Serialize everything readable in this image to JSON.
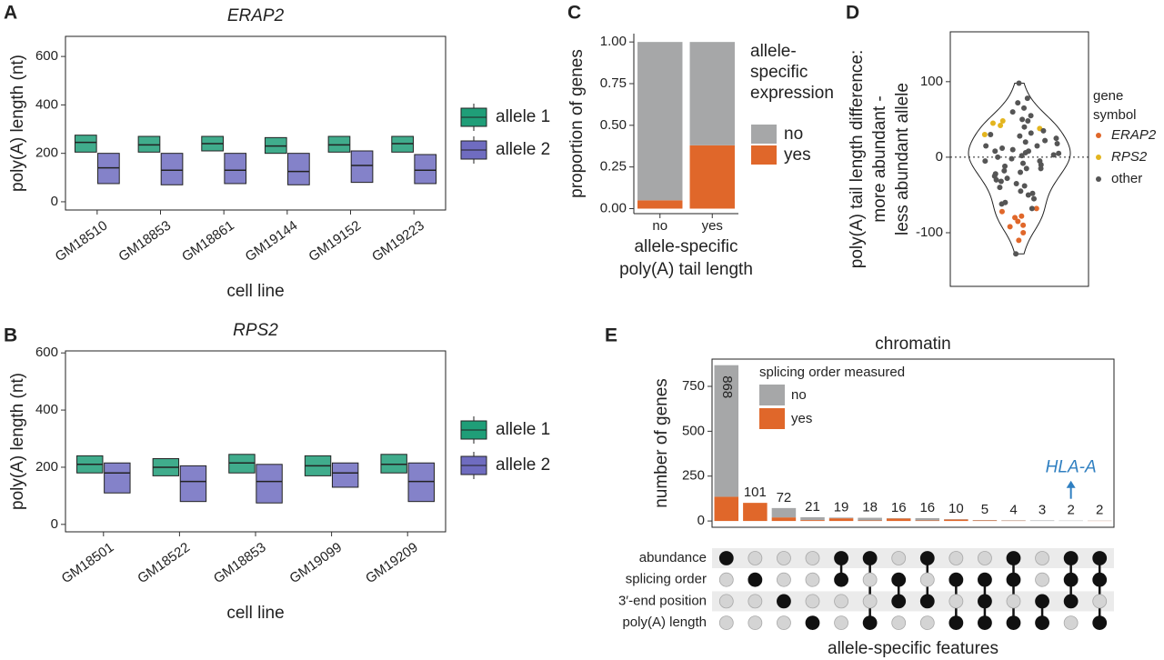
{
  "chart_data": [
    {
      "panel": "A",
      "type": "box",
      "title": "ERAP2",
      "x_label": "cell line",
      "y_label": "poly(A) length (nt)",
      "categories": [
        "GM18510",
        "GM18853",
        "GM18861",
        "GM19144",
        "GM19152",
        "GM19223"
      ],
      "series": [
        {
          "name": "allele 1",
          "color": "#1f9e78",
          "q1": [
            205,
            205,
            210,
            200,
            205,
            205
          ],
          "median": [
            245,
            235,
            240,
            230,
            235,
            240
          ],
          "q3": [
            275,
            270,
            270,
            265,
            270,
            270
          ]
        },
        {
          "name": "allele 2",
          "color": "#6f6cc0",
          "q1": [
            75,
            70,
            75,
            70,
            80,
            75
          ],
          "median": [
            140,
            130,
            130,
            125,
            150,
            130
          ],
          "q3": [
            200,
            200,
            200,
            200,
            210,
            195
          ]
        }
      ],
      "ylim": [
        -34,
        683
      ],
      "yticks": [
        0,
        200,
        400,
        600
      ]
    },
    {
      "panel": "B",
      "type": "box",
      "title": "RPS2",
      "x_label": "cell line",
      "y_label": "poly(A) length (nt)",
      "categories": [
        "GM18501",
        "GM18522",
        "GM18853",
        "GM19099",
        "GM19209"
      ],
      "series": [
        {
          "name": "allele 1",
          "color": "#1f9e78",
          "q1": [
            180,
            170,
            180,
            170,
            180
          ],
          "median": [
            210,
            200,
            215,
            205,
            210
          ],
          "q3": [
            240,
            230,
            245,
            240,
            245
          ]
        },
        {
          "name": "allele 2",
          "color": "#6f6cc0",
          "q1": [
            110,
            80,
            75,
            130,
            80
          ],
          "median": [
            180,
            150,
            150,
            180,
            150
          ],
          "q3": [
            215,
            205,
            210,
            215,
            215
          ]
        }
      ],
      "ylim": [
        -26,
        607
      ],
      "yticks": [
        0,
        200,
        400,
        600
      ]
    },
    {
      "panel": "C",
      "type": "stacked_bar",
      "y_label": "proportion of genes",
      "x_label": [
        "allele-specific",
        "poly(A) tail length"
      ],
      "legend_title": [
        "allele-",
        "specific",
        "expression"
      ],
      "categories": [
        "no",
        "yes"
      ],
      "series": [
        {
          "name": "no",
          "color": "#a6a7a8",
          "values": [
            0.95,
            0.62
          ]
        },
        {
          "name": "yes",
          "color": "#e0672a",
          "values": [
            0.05,
            0.38
          ]
        }
      ],
      "ylim": [
        -0.03,
        1.05
      ],
      "yticks": [
        {
          "value": 0,
          "label": "0.00"
        },
        {
          "value": 0.25,
          "label": "0.25"
        },
        {
          "value": 0.5,
          "label": "0.50"
        },
        {
          "value": 0.75,
          "label": "0.75"
        },
        {
          "value": 1,
          "label": "1.00"
        }
      ]
    },
    {
      "panel": "D",
      "type": "violin",
      "y_label": [
        "poly(A) tail length difference:",
        "more abundant -",
        "less abundant allele"
      ],
      "legend_title": [
        "gene",
        "symbol"
      ],
      "series": [
        {
          "name": "ERAP2",
          "italic": true,
          "color": "#e0672a",
          "values": [
            -68,
            -72,
            -78,
            -80,
            -85,
            -90,
            -92,
            -100,
            -110
          ]
        },
        {
          "name": "RPS2",
          "italic": true,
          "color": "#e3b51f",
          "values": [
            45,
            42,
            38,
            30,
            48
          ]
        },
        {
          "name": "other",
          "italic": false,
          "color": "#555555",
          "values": [
            98,
            78,
            72,
            65,
            60,
            55,
            50,
            48,
            40,
            35,
            32,
            28,
            25,
            22,
            20,
            18,
            15,
            12,
            10,
            8,
            6,
            5,
            3,
            2,
            0,
            -2,
            -5,
            -8,
            -10,
            -12,
            -15,
            -18,
            -20,
            -22,
            -25,
            -28,
            -30,
            -32,
            -35,
            -38,
            -40,
            -45,
            -48,
            -50,
            -55,
            -60,
            -62,
            -68,
            -128,
            30,
            15,
            -15,
            -5,
            8
          ]
        }
      ],
      "ylim": [
        -171,
        166
      ],
      "yticks": [
        -100,
        0,
        100
      ]
    },
    {
      "panel": "E",
      "type": "upset",
      "title": "chromatin",
      "y_label": "number of genes",
      "x_label": "allele-specific features",
      "legend_title": "splicing order measured",
      "totals": [
        868,
        101,
        72,
        21,
        19,
        18,
        16,
        16,
        10,
        5,
        4,
        3,
        2,
        2
      ],
      "series": [
        {
          "name": "no",
          "color": "#a6a7a8",
          "values": [
            733,
            0,
            52,
            16,
            4,
            15,
            2,
            13,
            2,
            2,
            2,
            3,
            2,
            1
          ]
        },
        {
          "name": "yes",
          "color": "#e0672a",
          "values": [
            135,
            101,
            20,
            5,
            15,
            3,
            14,
            3,
            8,
            3,
            2,
            0,
            0,
            1
          ]
        }
      ],
      "sets": [
        "abundance",
        "splicing order",
        "3′-end position",
        "poly(A) length"
      ],
      "membership": [
        [
          1,
          0,
          0,
          0,
          1,
          1,
          0,
          1,
          0,
          0,
          1,
          0,
          1,
          1
        ],
        [
          0,
          1,
          0,
          0,
          1,
          0,
          1,
          0,
          1,
          1,
          1,
          0,
          1,
          1
        ],
        [
          0,
          0,
          1,
          0,
          0,
          0,
          1,
          1,
          0,
          1,
          0,
          1,
          1,
          0
        ],
        [
          0,
          0,
          0,
          1,
          0,
          1,
          0,
          0,
          1,
          1,
          1,
          1,
          0,
          1
        ]
      ],
      "annotation": {
        "text": "HLA-A",
        "target": 12,
        "color": "#2f7fc1"
      },
      "ylim": [
        -35,
        902
      ],
      "yticks": [
        0,
        250,
        500,
        750
      ]
    }
  ]
}
